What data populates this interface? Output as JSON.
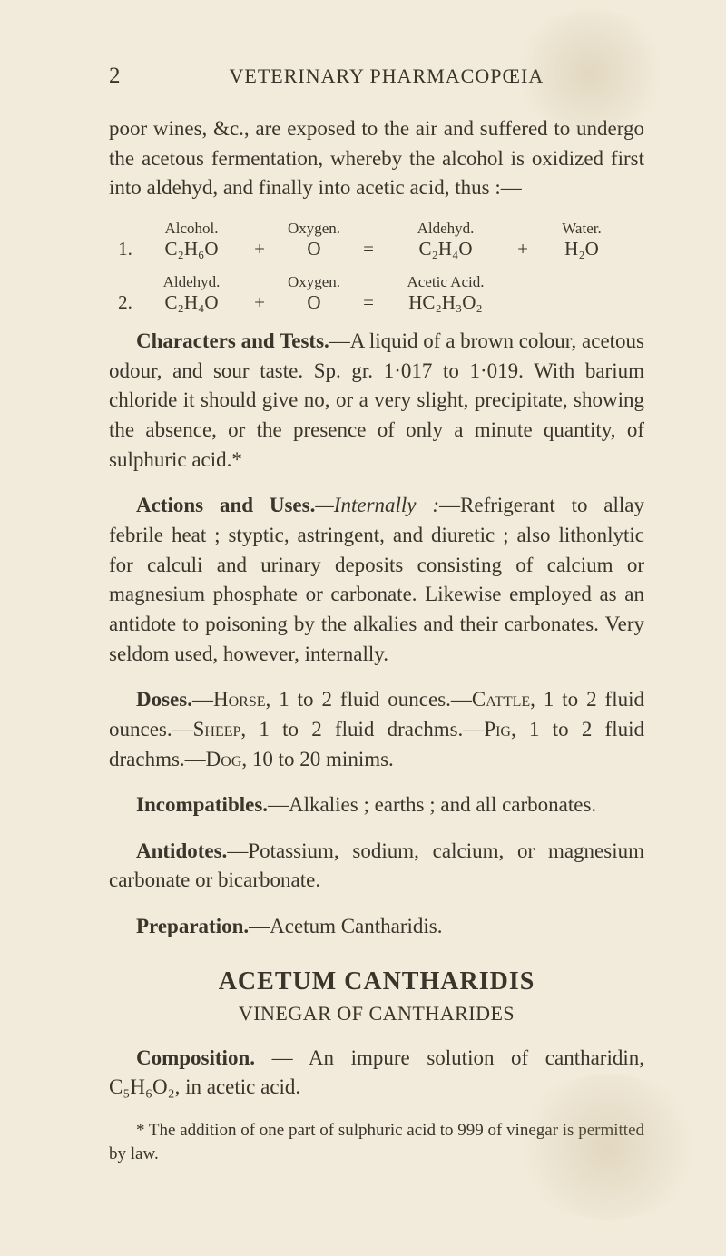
{
  "header": {
    "page_number": "2",
    "running_title": "VETERINARY PHARMACOPŒIA"
  },
  "para_intro": "poor wines, &c., are exposed to the air and suffered to undergo the acetous fermentation, whereby the alcohol is oxidized first into aldehyd, and finally into acetic acid, thus :—",
  "eq1": {
    "num": "1.",
    "labels": {
      "a": "Alcohol.",
      "b": "Oxygen.",
      "c": "Aldehyd.",
      "d": "Water."
    },
    "terms": {
      "a": "C₂H₆O",
      "op1": "+",
      "b": "O",
      "op2": "=",
      "c": "C₂H₄O",
      "op3": "+",
      "d": "H₂O"
    }
  },
  "eq2": {
    "num": "2.",
    "labels": {
      "a": "Aldehyd.",
      "b": "Oxygen.",
      "c": "Acetic Acid.",
      "d": ""
    },
    "terms": {
      "a": "C₂H₄O",
      "op1": "+",
      "b": "O",
      "op2": "=",
      "c": "HC₂H₃O₂",
      "op3": "",
      "d": ""
    }
  },
  "characters": {
    "lead": "Characters and Tests.",
    "text": "—A liquid of a brown colour, acetous odour, and sour taste. Sp. gr. 1·017 to 1·019. With barium chloride it should give no, or a very slight, precipitate, showing the absence, or the presence of only a minute quantity, of sulphuric acid.*"
  },
  "actions": {
    "lead": "Actions and Uses.",
    "italic": "—Internally :",
    "text": "—Refrigerant to allay febrile heat ; styptic, astringent, and diuretic ; also lithonlytic for calculi and urinary deposits consisting of calcium or magnesium phosphate or carbonate. Likewise employed as an antidote to poisoning by the alkalies and their carbonates. Very seldom used, however, internally."
  },
  "doses": {
    "lead": "Doses.",
    "horse": "Horse",
    "horse_txt": ", 1 to 2 fluid ounces.—",
    "cattle": "Cattle",
    "cattle_txt": ", 1 to 2 fluid ounces.—",
    "sheep": "Sheep",
    "sheep_txt": ", 1 to 2 fluid drachms.—",
    "pig": "Pig",
    "pig_txt": ", 1 to 2 fluid drachms.—",
    "dog": "Dog",
    "dog_txt": ", 10 to 20 minims."
  },
  "incompat": {
    "lead": "Incompatibles.",
    "text": "—Alkalies ; earths ; and all carbonates."
  },
  "antidotes": {
    "lead": "Antidotes.",
    "text": "—Potassium, sodium, calcium, or magnesium carbonate or bicarbonate."
  },
  "prep": {
    "lead": "Preparation.",
    "text": "—Acetum Cantharidis."
  },
  "section": {
    "title": "ACETUM CANTHARIDIS",
    "subtitle": "VINEGAR OF CANTHARIDES"
  },
  "composition": {
    "lead": "Composition.",
    "text_before": " — An impure solution of cantharidin, ",
    "formula": "C₅H₆O₂,",
    "text_after": " in acetic acid."
  },
  "footnote": "* The addition of one part of sulphuric acid to 999 of vinegar is permitted by law."
}
